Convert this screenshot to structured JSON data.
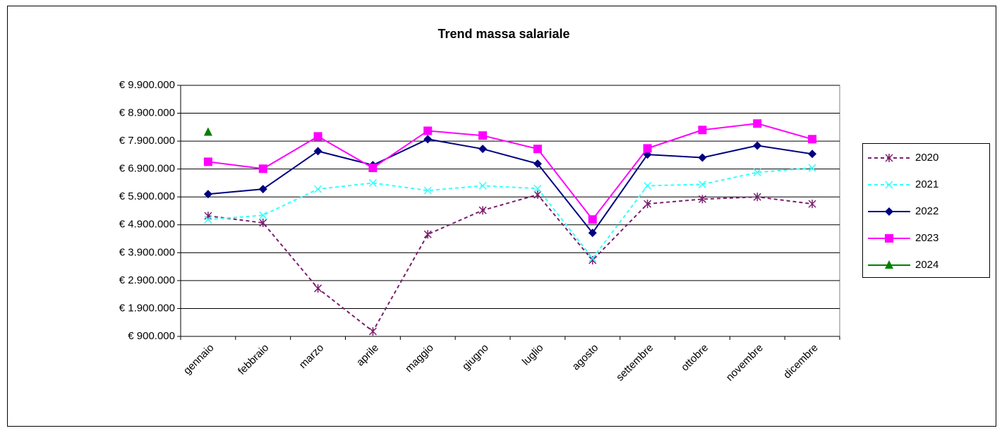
{
  "chart_data": {
    "type": "line",
    "title": "Trend massa salariale",
    "categories": [
      "gennaio",
      "febbraio",
      "marzo",
      "aprile",
      "maggio",
      "giugno",
      "luglio",
      "agosto",
      "settembre",
      "ottobre",
      "novembre",
      "dicembre"
    ],
    "ylim": [
      900000,
      9900000
    ],
    "yticks": [
      {
        "value": 900000,
        "label": "€ 900.000"
      },
      {
        "value": 1900000,
        "label": "€ 1.900.000"
      },
      {
        "value": 2900000,
        "label": "€ 2.900.000"
      },
      {
        "value": 3900000,
        "label": "€ 3.900.000"
      },
      {
        "value": 4900000,
        "label": "€ 4.900.000"
      },
      {
        "value": 5900000,
        "label": "€ 5.900.000"
      },
      {
        "value": 6900000,
        "label": "€ 6.900.000"
      },
      {
        "value": 7900000,
        "label": "€ 7.900.000"
      },
      {
        "value": 8900000,
        "label": "€ 8.900.000"
      },
      {
        "value": 9900000,
        "label": "€ 9.900.000"
      }
    ],
    "grid": true,
    "legend": "right",
    "series": [
      {
        "name": "2020",
        "color": "#7a1f6e",
        "dashed": true,
        "marker": "star",
        "values": [
          5220000,
          4970000,
          2620000,
          1080000,
          4560000,
          5420000,
          5980000,
          3630000,
          5650000,
          5820000,
          5900000,
          5650000
        ]
      },
      {
        "name": "2021",
        "color": "#33ffff",
        "dashed": true,
        "marker": "x",
        "values": [
          5090000,
          5240000,
          6180000,
          6400000,
          6130000,
          6300000,
          6200000,
          3700000,
          6300000,
          6350000,
          6780000,
          6940000
        ]
      },
      {
        "name": "2022",
        "color": "#000080",
        "dashed": false,
        "marker": "diamond",
        "values": [
          6000000,
          6180000,
          7540000,
          7040000,
          7970000,
          7620000,
          7090000,
          4610000,
          7420000,
          7310000,
          7740000,
          7440000
        ]
      },
      {
        "name": "2023",
        "color": "#ff00ff",
        "dashed": false,
        "marker": "square",
        "values": [
          7160000,
          6910000,
          8070000,
          6940000,
          8270000,
          8100000,
          7620000,
          5090000,
          7640000,
          8300000,
          8530000,
          7970000
        ]
      },
      {
        "name": "2024",
        "color": "#008000",
        "dashed": false,
        "marker": "triangle",
        "values": [
          8220000,
          null,
          null,
          null,
          null,
          null,
          null,
          null,
          null,
          null,
          null,
          null
        ]
      }
    ]
  }
}
